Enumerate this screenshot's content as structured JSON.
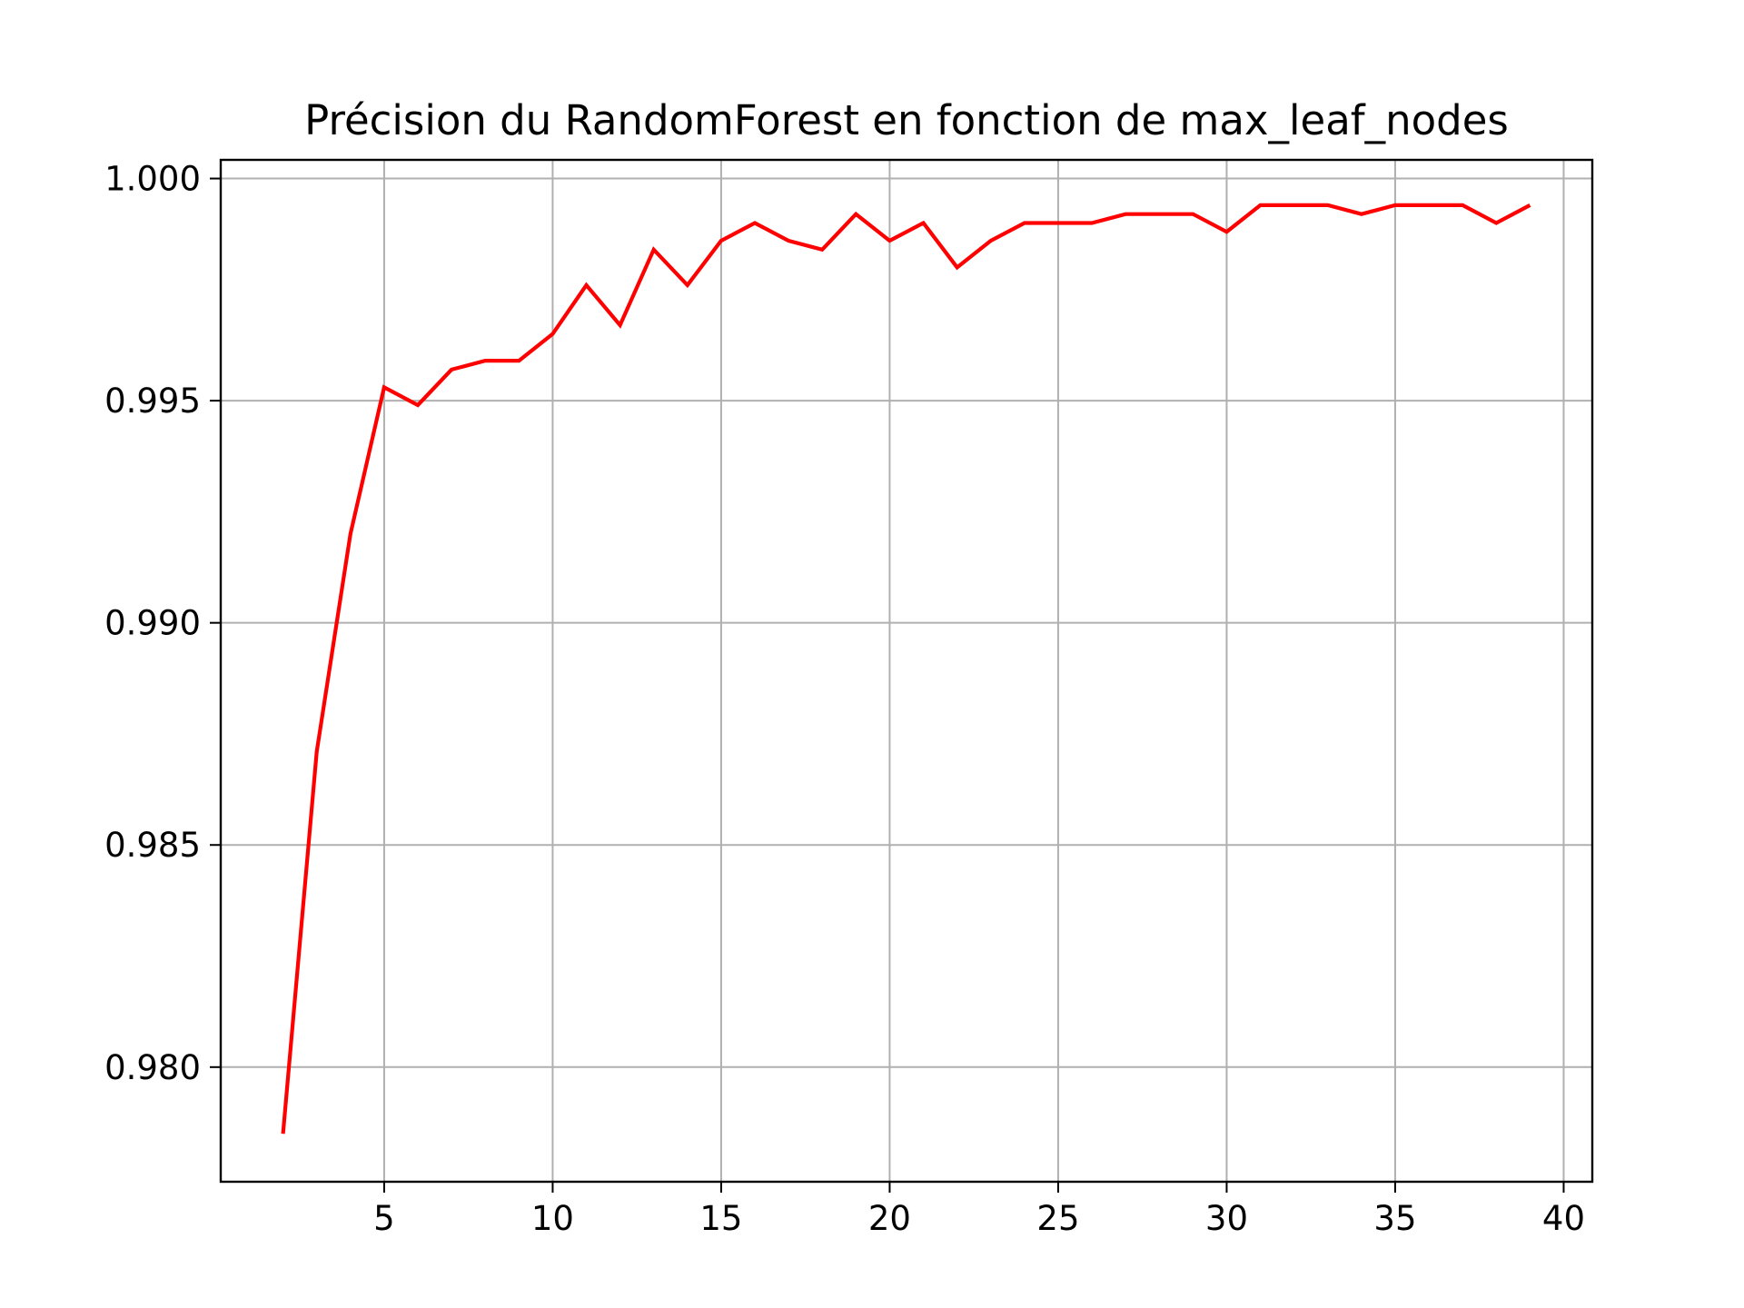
{
  "chart_data": {
    "type": "line",
    "title": "Précision du RandomForest en fonction de max_leaf_nodes",
    "xlabel": "",
    "ylabel": "",
    "xlim": [
      0.15,
      40.85
    ],
    "ylim": [
      0.97742,
      1.00042
    ],
    "grid": true,
    "legend": "none",
    "x_ticks": [
      5,
      10,
      15,
      20,
      25,
      30,
      35,
      40
    ],
    "x_tick_labels": [
      "5",
      "10",
      "15",
      "20",
      "25",
      "30",
      "35",
      "40"
    ],
    "y_ticks": [
      0.98,
      0.985,
      0.99,
      0.995,
      1.0
    ],
    "y_tick_labels": [
      "0.980",
      "0.985",
      "0.990",
      "0.995",
      "1.000"
    ],
    "series": [
      {
        "color": "#ff0000",
        "x": [
          2,
          3,
          4,
          5,
          6,
          7,
          8,
          9,
          10,
          11,
          12,
          13,
          14,
          15,
          16,
          17,
          18,
          19,
          20,
          21,
          22,
          23,
          24,
          25,
          26,
          27,
          28,
          29,
          30,
          31,
          32,
          33,
          34,
          35,
          36,
          37,
          38,
          39
        ],
        "y": [
          0.9785,
          0.9871,
          0.992,
          0.9953,
          0.9949,
          0.9957,
          0.9959,
          0.9959,
          0.9965,
          0.9976,
          0.9967,
          0.9984,
          0.9976,
          0.9986,
          0.999,
          0.9986,
          0.9984,
          0.9992,
          0.9986,
          0.999,
          0.998,
          0.9986,
          0.999,
          0.999,
          0.999,
          0.9992,
          0.9992,
          0.9992,
          0.9988,
          0.9994,
          0.9994,
          0.9994,
          0.9992,
          0.9994,
          0.9994,
          0.9994,
          0.999,
          0.9994
        ]
      }
    ]
  }
}
